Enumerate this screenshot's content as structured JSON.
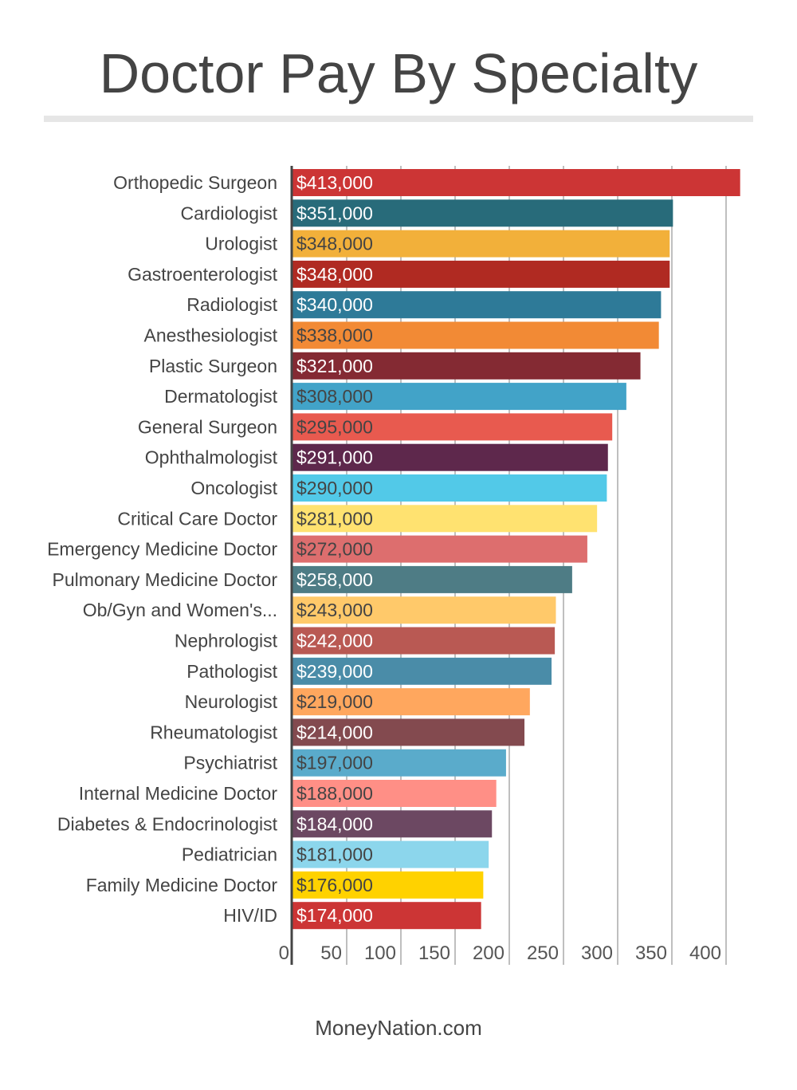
{
  "title": "Doctor Pay By Specialty",
  "source": "MoneyNation.com",
  "chart_data": {
    "type": "bar",
    "orientation": "horizontal",
    "title": "Doctor Pay By Specialty",
    "xlabel": "",
    "ylabel": "",
    "xlim": [
      0,
      413
    ],
    "x_ticks": [
      0,
      50,
      100,
      150,
      200,
      250,
      300,
      350,
      400
    ],
    "grid": true,
    "categories": [
      "Orthopedic Surgeon",
      "Cardiologist",
      "Urologist",
      "Gastroenterologist",
      "Radiologist",
      "Anesthesiologist",
      "Plastic Surgeon",
      "Dermatologist",
      "General Surgeon",
      "Ophthalmologist",
      "Oncologist",
      "Critical Care Doctor",
      "Emergency Medicine Doctor",
      "Pulmonary Medicine Doctor",
      "Ob/Gyn and Women's...",
      "Nephrologist",
      "Pathologist",
      "Neurologist",
      "Rheumatologist",
      "Psychiatrist",
      "Internal Medicine Doctor",
      "Diabetes & Endocrinologist",
      "Pediatrician",
      "Family Medicine Doctor",
      "HIV/ID"
    ],
    "values": [
      413,
      351,
      348,
      348,
      340,
      338,
      321,
      308,
      295,
      291,
      290,
      281,
      272,
      258,
      243,
      242,
      239,
      219,
      214,
      197,
      188,
      184,
      181,
      176,
      174
    ],
    "data_labels": [
      "$413,000",
      "$351,000",
      "$348,000",
      "$348,000",
      "$340,000",
      "$338,000",
      "$321,000",
      "$308,000",
      "$295,000",
      "$291,000",
      "$290,000",
      "$281,000",
      "$272,000",
      "$258,000",
      "$243,000",
      "$242,000",
      "$239,000",
      "$219,000",
      "$214,000",
      "$197,000",
      "$188,000",
      "$184,000",
      "$181,000",
      "$176,000",
      "$174,000"
    ],
    "colors": [
      "#cc3535",
      "#286b7a",
      "#f2b03a",
      "#b02a22",
      "#2e7a98",
      "#f28a35",
      "#842a33",
      "#42a3c8",
      "#e85a4f",
      "#5e284c",
      "#52c9e8",
      "#ffe270",
      "#dd6e6e",
      "#4e7c85",
      "#ffc96a",
      "#b95953",
      "#4a8ca8",
      "#ffa75e",
      "#834a4f",
      "#5aabcb",
      "#ff8f86",
      "#6c4862",
      "#8cd6ec",
      "#ffd200",
      "#cc3535"
    ],
    "label_colors": [
      "#fff",
      "#fff",
      "#444",
      "#fff",
      "#fff",
      "#444",
      "#fff",
      "#444",
      "#444",
      "#fff",
      "#444",
      "#444",
      "#444",
      "#fff",
      "#444",
      "#fff",
      "#fff",
      "#444",
      "#fff",
      "#444",
      "#444",
      "#fff",
      "#444",
      "#444",
      "#fff"
    ]
  }
}
